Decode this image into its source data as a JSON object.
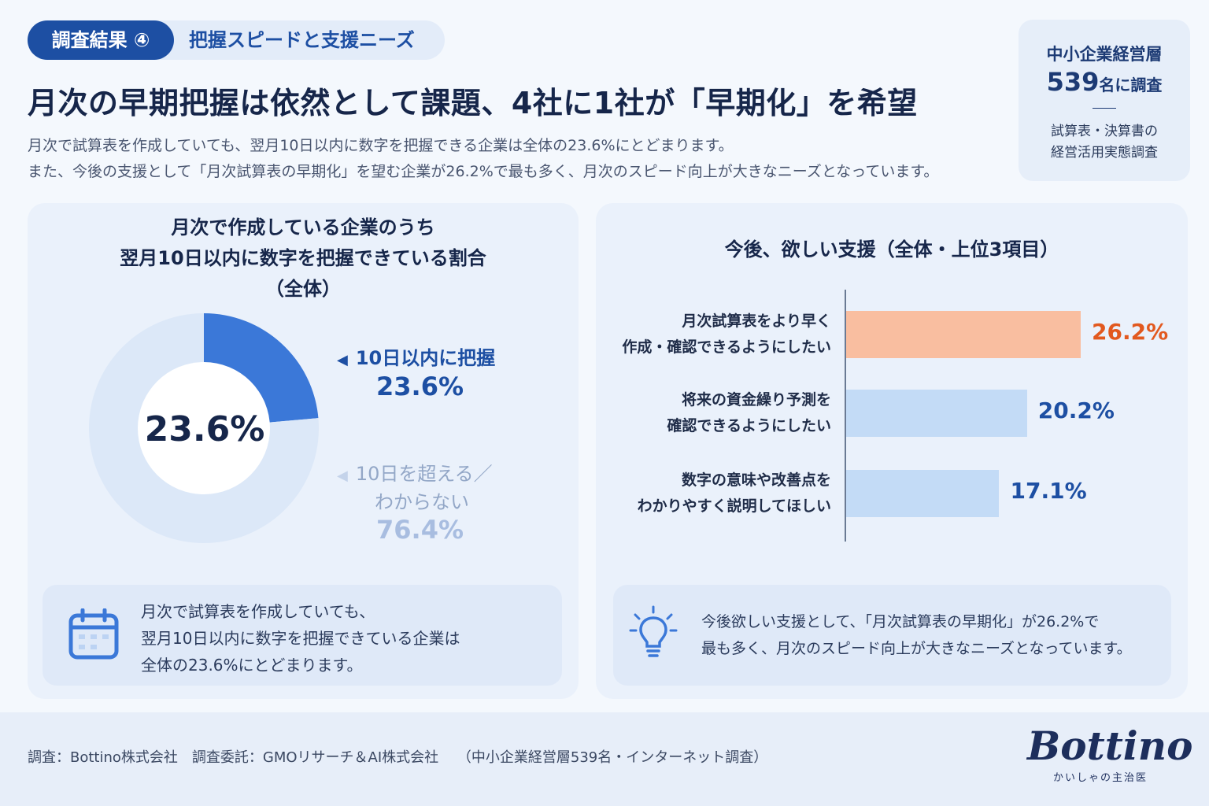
{
  "header": {
    "badge": "調査結果 ④",
    "section": "把握スピードと支援ニーズ",
    "title": "月次の早期把握は依然として課題、4社に1社が「早期化」を希望",
    "subtitle_1": "月次で試算表を作成していても、翌月10日以内に数字を把握できる企業は全体の23.6%にとどまります。",
    "subtitle_2": "また、今後の支援として「月次試算表の早期化」を望む企業が26.2%で最も多く、月次のスピード向上が大きなニーズとなっています。"
  },
  "survey": {
    "line1": "中小企業経営層",
    "count": "539",
    "count_suffix": "名に調査",
    "line3": "試算表・決算書の",
    "line4": "経営活用実態調査"
  },
  "chart_data": [
    {
      "type": "pie",
      "title_lines": [
        "月次で作成している企業のうち",
        "翌月10日以内に数字を把握できている割合",
        "（全体）"
      ],
      "center_label": "23.6%",
      "slices": [
        {
          "name_lines": [
            "10日以内に把握"
          ],
          "value": 23.6,
          "label": "23.6%",
          "color": "#3b78d8"
        },
        {
          "name_lines": [
            "10日を超える／",
            "わからない"
          ],
          "value": 76.4,
          "label": "76.4%",
          "color": "#dce8f8"
        }
      ]
    },
    {
      "type": "bar",
      "orientation": "horizontal",
      "title": "今後、欲しい支援（全体・上位3項目）",
      "categories": [
        [
          "月次試算表をより早く",
          "作成・確認できるようにしたい"
        ],
        [
          "将来の資金繰り予測を",
          "確認できるようにしたい"
        ],
        [
          "数字の意味や改善点を",
          "わかりやすく説明してほしい"
        ]
      ],
      "values": [
        26.2,
        20.2,
        17.1
      ],
      "value_labels": [
        "26.2%",
        "20.2%",
        "17.1%"
      ],
      "colors": [
        "#f9bea0",
        "#c3dbf6",
        "#c3dbf6"
      ],
      "label_colors": [
        "#e2591f",
        "#1d4fa3",
        "#1d4fa3"
      ],
      "xlim": [
        0,
        30
      ]
    }
  ],
  "notes": {
    "left": [
      "月次で試算表を作成していても、",
      "翌月10日以内に数字を把握できている企業は",
      "全体の23.6%にとどまります。"
    ],
    "right": [
      "今後欲しい支援として、「月次試算表の早期化」が26.2%で",
      "最も多く、月次のスピード向上が大きなニーズとなっています。"
    ]
  },
  "footer": {
    "text": "調査：Bottino株式会社　調査委託：GMOリサーチ＆AI株式会社　 （中小企業経営層539名・インターネット調査）",
    "brand": "Bottino",
    "brand_sub": "かいしゃの主治医"
  },
  "icons": {
    "note_left": "calendar-icon",
    "note_right": "lightbulb-icon",
    "legend_marker": "triangle-left-icon"
  }
}
